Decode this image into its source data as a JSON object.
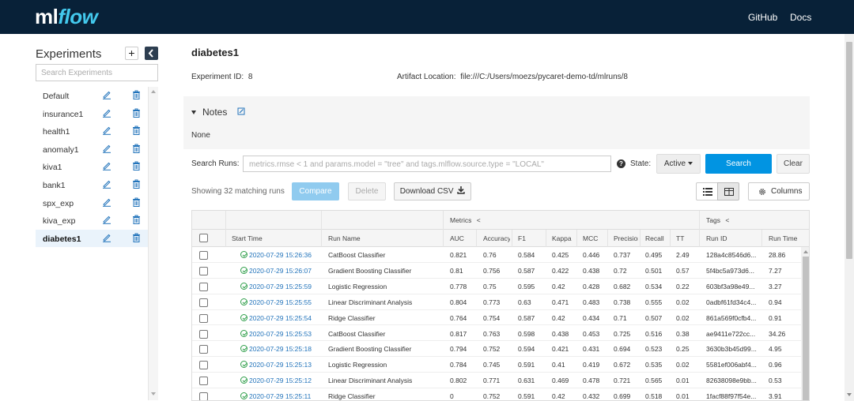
{
  "header": {
    "logo_ml": "ml",
    "logo_flow": "flow",
    "github": "GitHub",
    "docs": "Docs",
    "bg_color": "#082138"
  },
  "sidebar": {
    "title": "Experiments",
    "add_icon": "plus-icon",
    "collapse_icon": "chevron-left-icon",
    "search_placeholder": "Search Experiments",
    "items": [
      {
        "label": "Default",
        "active": false
      },
      {
        "label": "insurance1",
        "active": false
      },
      {
        "label": "health1",
        "active": false
      },
      {
        "label": "anomaly1",
        "active": false
      },
      {
        "label": "kiva1",
        "active": false
      },
      {
        "label": "bank1",
        "active": false
      },
      {
        "label": "spx_exp",
        "active": false
      },
      {
        "label": "kiva_exp",
        "active": false
      },
      {
        "label": "diabetes1",
        "active": true
      }
    ]
  },
  "experiment": {
    "title": "diabetes1",
    "id_label": "Experiment ID:",
    "id_value": "8",
    "artifact_label": "Artifact Location:",
    "artifact_value": "file:///C:/Users/moezs/pycaret-demo-td/mlruns/8"
  },
  "notes": {
    "label": "Notes",
    "body": "None"
  },
  "search": {
    "label": "Search Runs:",
    "placeholder": "metrics.rmse < 1 and params.model = \"tree\" and tags.mlflow.source.type = \"LOCAL\"",
    "state_label": "State:",
    "state_value": "Active",
    "search_button": "Search",
    "clear_button": "Clear"
  },
  "toolbar": {
    "showing": "Showing 32 matching runs",
    "compare": "Compare",
    "delete": "Delete",
    "download": "Download CSV",
    "columns": "Columns"
  },
  "table": {
    "group_metrics": "Metrics",
    "group_tags": "Tags",
    "headers": [
      "Start Time",
      "Run Name",
      "AUC",
      "Accuracy",
      "F1",
      "Kappa",
      "MCC",
      "Precision",
      "Recall",
      "TT",
      "Run ID",
      "Run Time"
    ],
    "rows": [
      [
        "2020-07-29 15:26:36",
        "CatBoost Classifier",
        "0.821",
        "0.76",
        "0.584",
        "0.425",
        "0.446",
        "0.737",
        "0.495",
        "2.49",
        "128a4c8546d6...",
        "28.86"
      ],
      [
        "2020-07-29 15:26:07",
        "Gradient Boosting Classifier",
        "0.81",
        "0.756",
        "0.587",
        "0.422",
        "0.438",
        "0.72",
        "0.501",
        "0.57",
        "5f4bc5a973d6...",
        "7.27"
      ],
      [
        "2020-07-29 15:25:59",
        "Logistic Regression",
        "0.778",
        "0.75",
        "0.595",
        "0.42",
        "0.428",
        "0.682",
        "0.534",
        "0.22",
        "603bf3a98e49...",
        "3.27"
      ],
      [
        "2020-07-29 15:25:55",
        "Linear Discriminant Analysis",
        "0.804",
        "0.773",
        "0.63",
        "0.471",
        "0.483",
        "0.738",
        "0.555",
        "0.02",
        "0adbf61fd34c4...",
        "0.94"
      ],
      [
        "2020-07-29 15:25:54",
        "Ridge Classifier",
        "0.764",
        "0.754",
        "0.587",
        "0.42",
        "0.434",
        "0.71",
        "0.507",
        "0.02",
        "861a569f0cfb4...",
        "0.91"
      ],
      [
        "2020-07-29 15:25:53",
        "CatBoost Classifier",
        "0.817",
        "0.763",
        "0.598",
        "0.438",
        "0.453",
        "0.725",
        "0.516",
        "0.38",
        "ae9411e722cc...",
        "34.26"
      ],
      [
        "2020-07-29 15:25:18",
        "Gradient Boosting Classifier",
        "0.794",
        "0.752",
        "0.594",
        "0.421",
        "0.431",
        "0.694",
        "0.523",
        "0.25",
        "3630b3b45d99...",
        "4.95"
      ],
      [
        "2020-07-29 15:25:13",
        "Logistic Regression",
        "0.784",
        "0.745",
        "0.591",
        "0.41",
        "0.419",
        "0.672",
        "0.535",
        "0.02",
        "5581ef006abf4...",
        "0.96"
      ],
      [
        "2020-07-29 15:25:12",
        "Linear Discriminant Analysis",
        "0.802",
        "0.771",
        "0.631",
        "0.469",
        "0.478",
        "0.721",
        "0.565",
        "0.01",
        "82638098e9bb...",
        "0.53"
      ],
      [
        "2020-07-29 15:25:11",
        "Ridge Classifier",
        "0",
        "0.752",
        "0.591",
        "0.42",
        "0.432",
        "0.699",
        "0.518",
        "0.01",
        "1facf88f97f54e...",
        "3.91"
      ]
    ]
  },
  "colors": {
    "accent": "#0194e2",
    "link": "#2374bb",
    "success": "#2e9e49"
  }
}
